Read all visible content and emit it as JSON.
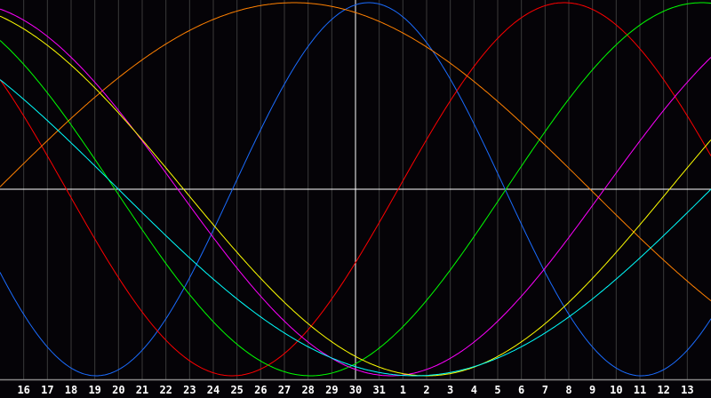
{
  "chart_data": {
    "type": "line",
    "title": "",
    "xlabel": "",
    "ylabel": "",
    "x_tick_labels": [
      "16",
      "17",
      "18",
      "19",
      "20",
      "21",
      "22",
      "23",
      "24",
      "25",
      "26",
      "27",
      "28",
      "29",
      "30",
      "31",
      "1",
      "2",
      "3",
      "4",
      "5",
      "6",
      "7",
      "8",
      "9",
      "10",
      "11",
      "12",
      "13"
    ],
    "highlighted_day": "30",
    "ylim": [
      -1,
      1
    ],
    "grid": true,
    "background": "#050307",
    "grid_color": "#3a3a3a",
    "series": [
      {
        "color": "#1a6cff",
        "period_days": 23,
        "peak_offset_days_from_highlighted": 0.56
      },
      {
        "color": "#ff0000",
        "period_days": 28,
        "peak_offset_days_from_highlighted": 8.8
      },
      {
        "color": "#00ff00",
        "period_days": 33,
        "peak_offset_days_from_highlighted": 14.6
      },
      {
        "color": "#ff8000",
        "period_days": 50,
        "peak_offset_days_from_highlighted": -2.6
      },
      {
        "color": "#ff00ff",
        "period_days": 36,
        "peak_offset_days_from_highlighted": 19.5
      },
      {
        "color": "#ffff00",
        "period_days": 41,
        "peak_offset_days_from_highlighted": 23.5
      },
      {
        "color": "#00ffff",
        "period_days": 50,
        "peak_offset_days_from_highlighted": 27.5
      }
    ]
  }
}
